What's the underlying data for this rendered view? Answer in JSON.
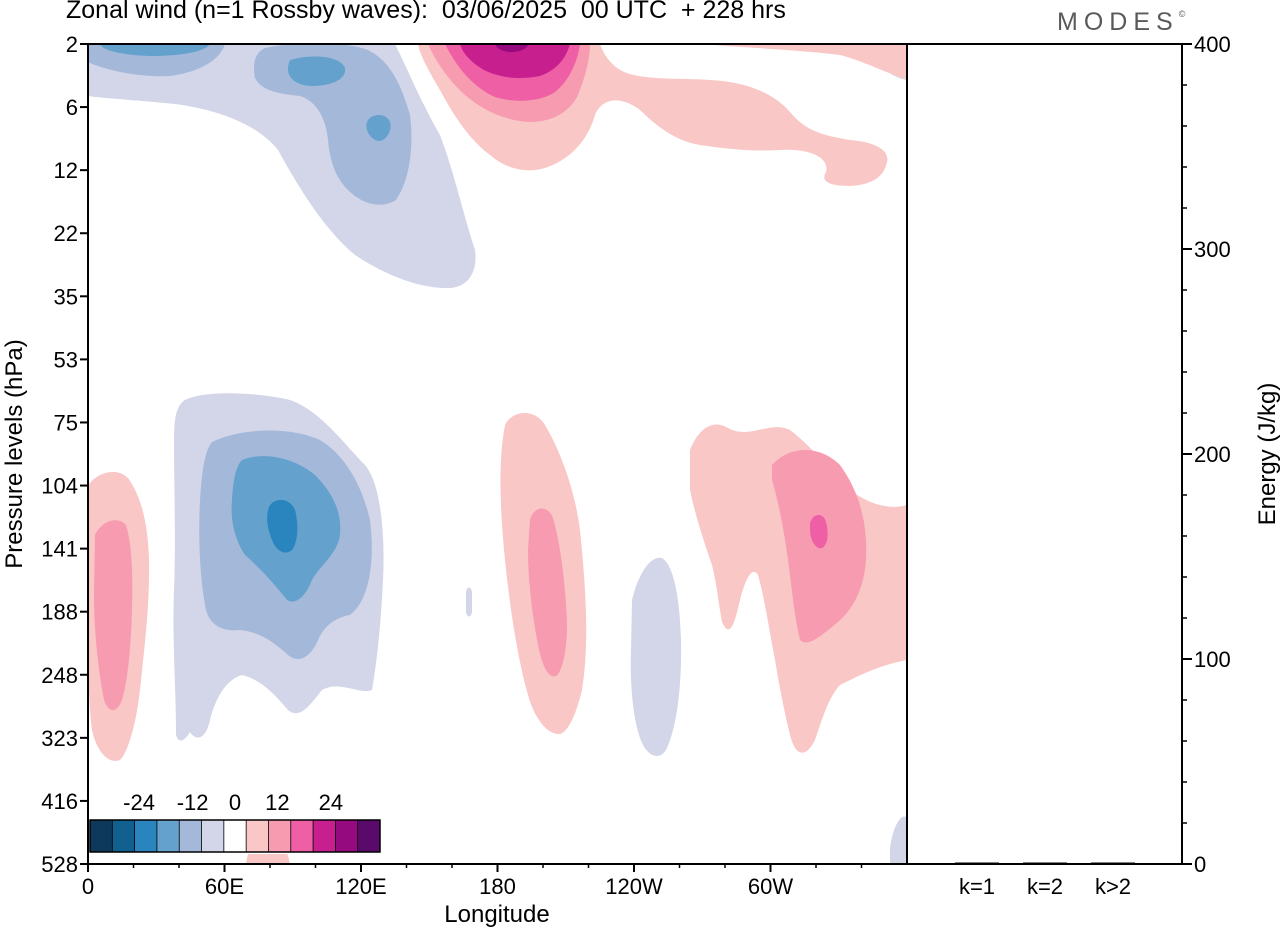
{
  "title": "Zonal wind (n=1 Rossby waves):  03/06/2025  00 UTC  + 228 hrs",
  "brand": "MODES",
  "brand_mark": "©",
  "chart_data": [
    {
      "type": "heatmap",
      "title": "Zonal wind (n=1 Rossby waves):  03/06/2025  00 UTC  + 228 hrs",
      "xlabel": "Longitude",
      "ylabel": "Pressure levels (hPa)",
      "x_ticks": [
        "0",
        "60E",
        "120E",
        "180",
        "120W",
        "60W"
      ],
      "x_tick_values": [
        0,
        60,
        120,
        180,
        240,
        300
      ],
      "xlim": [
        0,
        360
      ],
      "y_ticks": [
        "2",
        "6",
        "12",
        "22",
        "35",
        "53",
        "75",
        "104",
        "141",
        "188",
        "248",
        "323",
        "416",
        "528"
      ],
      "y_scale": "model levels (inverted pressure)",
      "colorbar": {
        "tick_labels": [
          "-24",
          "-12",
          "0",
          "12",
          "24"
        ],
        "tick_values": [
          -24,
          -12,
          0,
          12,
          24
        ],
        "levels": [
          -30,
          -25,
          -20,
          -15,
          -10,
          -5,
          5,
          10,
          15,
          20,
          25,
          30
        ],
        "colors": [
          "#0d3a5c",
          "#11608f",
          "#2a85bf",
          "#64a2cd",
          "#a4b9da",
          "#d3d6e8",
          "#ffffff",
          "#f9c8c6",
          "#f79bb1",
          "#ee5fa6",
          "#c81f8f",
          "#960a7f",
          "#5a0a6b"
        ],
        "placement": "bottom-left, inside plot"
      },
      "contour_regions": [
        {
          "category": "-5 to -10",
          "description": "upper-level trough 40E-150E, 2-30 hPa"
        },
        {
          "category": "-10 to -15",
          "description": "upper-level core near 90E, 2-15 hPa"
        },
        {
          "category": "-15 to -20",
          "description": "small cores near 80E and 100E at 3-8 hPa"
        },
        {
          "category": "5 to 10",
          "description": "upper-level ridge 150E-340E, 2-14 hPa"
        },
        {
          "category": "10 to 25",
          "description": "upper-level core near 180, 2-5 hPa"
        },
        {
          "category": "-5 to -15",
          "description": "mid-level core near 75E, 80-300 hPa"
        },
        {
          "category": "-15 to -20",
          "description": "mid-level center near 80E, 120-160 hPa"
        },
        {
          "category": "5 to 10",
          "description": "mid-level cores near 10E, 195E, 300E"
        },
        {
          "category": "10 to 15",
          "description": "mid-level core near 300E, 130-150 hPa"
        }
      ]
    },
    {
      "type": "bar",
      "title": "",
      "xlabel": "",
      "ylabel": "Energy (J/kg)",
      "categories": [
        "k=1",
        "k=2",
        "k>2"
      ],
      "values": [
        0.5,
        0.4,
        0.3
      ],
      "ylim": [
        0,
        400
      ],
      "y_ticks": [
        "0",
        "100",
        "200",
        "300",
        "400"
      ],
      "y_tick_values": [
        0,
        100,
        200,
        300,
        400
      ],
      "y_minor_step": 20
    }
  ]
}
